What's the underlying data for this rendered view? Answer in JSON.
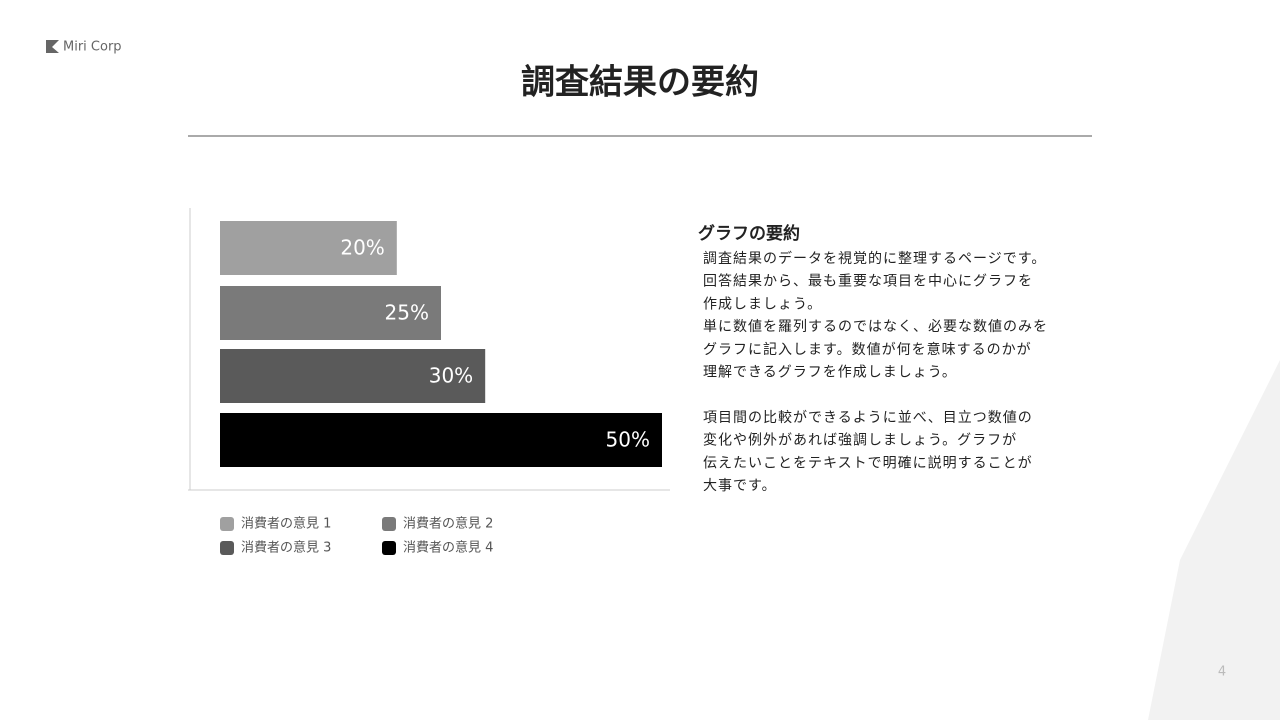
{
  "logo": "Miri Corp",
  "title": "調査結果の要約",
  "summary": {
    "heading": "グラフの要約",
    "paragraphs": [
      [
        "調査結果のデータを視覚的に整理するページです。",
        "回答結果から、最も重要な項目を中心にグラフを",
        "作成しましょう。",
        "単に数値を羅列するのではなく、必要な数値のみを",
        "グラフに記入します。数値が何を意味するのかが",
        "理解できるグラフを作成しましょう。"
      ],
      [
        "項目間の比較ができるように並べ、目立つ数値の",
        "変化や例外があれば強調しましょう。グラフが",
        "伝えたいことをテキストで明確に説明することが",
        "大事です。"
      ]
    ]
  },
  "page_number": "4",
  "chart_data": {
    "type": "bar",
    "orientation": "horizontal",
    "xlim": [
      0,
      50
    ],
    "series": [
      {
        "name": "消費者の意見 1",
        "color": "#a0a0a0",
        "values": [
          20
        ],
        "value_labels": [
          "20%"
        ]
      },
      {
        "name": "消費者の意見 2",
        "color": "#7a7a7a",
        "values": [
          25
        ],
        "value_labels": [
          "25%"
        ]
      },
      {
        "name": "消費者の意見 3",
        "color": "#5a5a5a",
        "values": [
          30
        ],
        "value_labels": [
          "30%"
        ]
      },
      {
        "name": "消費者の意見 4",
        "color": "#000000",
        "values": [
          50
        ],
        "value_labels": [
          "50%"
        ]
      }
    ]
  }
}
